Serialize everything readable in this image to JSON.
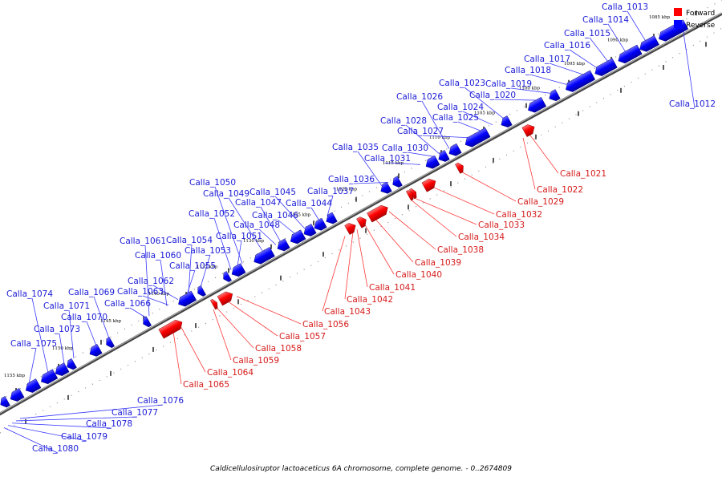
{
  "legend": {
    "items": [
      {
        "label": "Forward",
        "color": "#ff0000"
      },
      {
        "label": "Reverse",
        "color": "#0000ff"
      }
    ]
  },
  "caption": "Caldicellulosiruptor lactoaceticus 6A chromosome, complete genome. - 0..2674809",
  "colors": {
    "forward": "#ff0000",
    "reverse": "#0000ff",
    "backbone": "#555555"
  },
  "ticks": [
    "1085 kbp",
    "1090 kbp",
    "1095 kbp",
    "1100 kbp",
    "1105 kbp",
    "1110 kbp",
    "1115 kbp",
    "1120 kbp",
    "1125 kbp",
    "1130 kbp",
    "1135 kbp",
    "1140 kbp",
    "1145 kbp",
    "1150 kbp",
    "1155 kbp"
  ],
  "reverse_labels": [
    "Calla_1013",
    "Calla_1014",
    "Calla_1015",
    "Calla_1016",
    "Calla_1017",
    "Calla_1018",
    "Calla_1019",
    "Calla_1020",
    "Calla_1023",
    "Calla_1024",
    "Calla_1025",
    "Calla_1026",
    "Calla_1027",
    "Calla_1028",
    "Calla_1030",
    "Calla_1031",
    "Calla_1035",
    "Calla_1036",
    "Calla_1037",
    "Calla_1044",
    "Calla_1045",
    "Calla_1046",
    "Calla_1047",
    "Calla_1048",
    "Calla_1049",
    "Calla_1050",
    "Calla_1051",
    "Calla_1052",
    "Calla_1053",
    "Calla_1054",
    "Calla_1055",
    "Calla_1060",
    "Calla_1061",
    "Calla_1062",
    "Calla_1063",
    "Calla_1066",
    "Calla_1069",
    "Calla_1070",
    "Calla_1071",
    "Calla_1073",
    "Calla_1074",
    "Calla_1075",
    "Calla_1076",
    "Calla_1077",
    "Calla_1078",
    "Calla_1079",
    "Calla_1080",
    "Calla_1012"
  ],
  "forward_labels": [
    "Calla_1021",
    "Calla_1022",
    "Calla_1029",
    "Calla_1032",
    "Calla_1033",
    "Calla_1034",
    "Calla_1038",
    "Calla_1039",
    "Calla_1040",
    "Calla_1041",
    "Calla_1042",
    "Calla_1043",
    "Calla_1056",
    "Calla_1057",
    "Calla_1058",
    "Calla_1059",
    "Calla_1064",
    "Calla_1065"
  ]
}
